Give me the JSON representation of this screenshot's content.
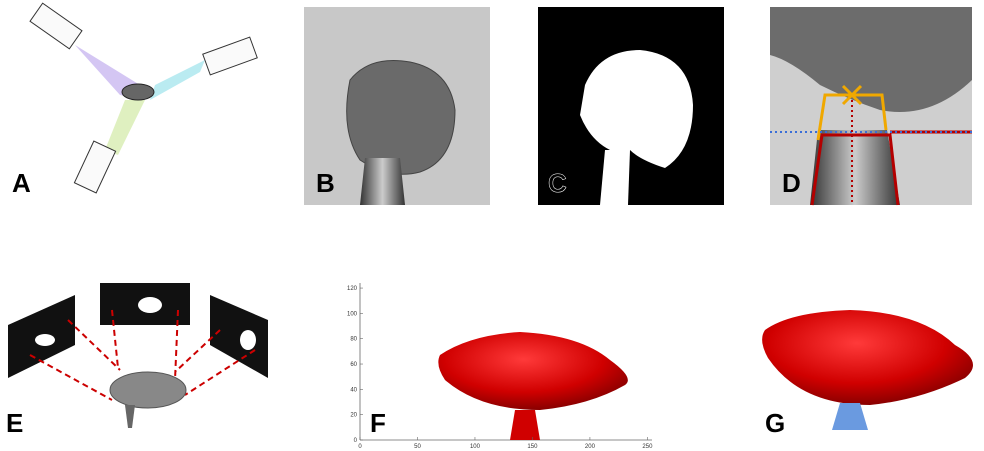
{
  "panels": [
    {
      "label": "A"
    },
    {
      "label": "B"
    },
    {
      "label": "C"
    },
    {
      "label": "D"
    },
    {
      "label": "E"
    },
    {
      "label": "F"
    },
    {
      "label": "G"
    }
  ],
  "plot": {
    "xlim": [
      0,
      254
    ],
    "ylim": [
      0,
      124
    ],
    "xticks": [
      0,
      50,
      100,
      150,
      200,
      250
    ],
    "yticks": [
      0,
      20,
      40,
      60,
      80,
      100,
      120
    ]
  }
}
